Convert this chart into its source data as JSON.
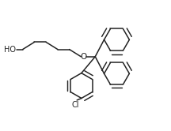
{
  "bg_color": "#ffffff",
  "line_color": "#222222",
  "line_width": 1.1,
  "font_size": 7.0,
  "fig_width": 2.16,
  "fig_height": 1.66,
  "dpi": 100,
  "xlim": [
    0,
    10.5
  ],
  "ylim": [
    0,
    8.0
  ]
}
